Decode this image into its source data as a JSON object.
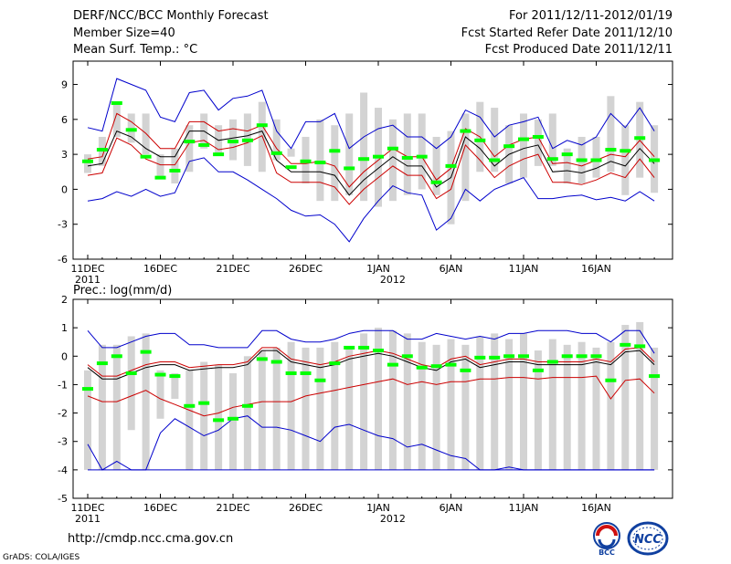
{
  "header": {
    "title": "DERF/NCC/BCC Monthly Forecast",
    "member_size": "Member Size=40",
    "variable": "Mean Surf. Temp.: °C",
    "period": "For 2011/12/11-2012/01/19",
    "started": "Fcst Started Refer Date 2011/12/10",
    "produced": "Fcst Produced Date 2011/12/11"
  },
  "footer": {
    "url": "http://cmdp.ncc.cma.gov.cn",
    "credit": "GrADS: COLA/IGES"
  },
  "logos": {
    "bcc": "BCC",
    "ncc": "NCC"
  },
  "colors": {
    "box": "#d3d3d3",
    "mean": "#00ff00",
    "median": "#000000",
    "inner": "#cc0000",
    "outer": "#0000cc"
  },
  "chart_data": [
    {
      "type": "line",
      "title": "Mean Surf. Temp.: °C",
      "ylim": [
        -6,
        11
      ],
      "yticks": [
        "9",
        "6",
        "3",
        "0",
        "-3",
        "-6"
      ],
      "ytick_values": [
        9,
        6,
        3,
        0,
        -3,
        -6
      ],
      "x_tick_days": [
        1,
        6,
        11,
        16,
        21,
        26,
        31,
        36
      ],
      "x_tick_labels": [
        "11DEC",
        "16DEC",
        "21DEC",
        "26DEC",
        "1JAN",
        "6JAN",
        "11JAN",
        "16JAN"
      ],
      "x_year_labels": [
        {
          "day": 1,
          "label": "2011"
        },
        {
          "day": 22,
          "label": "2012"
        }
      ],
      "days": [
        1,
        2,
        3,
        4,
        5,
        6,
        7,
        8,
        9,
        10,
        11,
        12,
        13,
        14,
        15,
        16,
        17,
        18,
        19,
        20,
        21,
        22,
        23,
        24,
        25,
        26,
        27,
        28,
        29,
        30,
        31,
        32,
        33,
        34,
        35,
        36,
        37,
        38,
        39,
        40
      ],
      "box_low": [
        1.4,
        2.0,
        4.5,
        4.0,
        3.0,
        1.0,
        0.5,
        1.5,
        3.5,
        3.0,
        2.5,
        2.0,
        1.5,
        2.5,
        2.8,
        0.5,
        -1.0,
        -1.0,
        -0.5,
        -1.0,
        -1.5,
        -1.0,
        -0.5,
        0.0,
        -0.5,
        -3.0,
        -1.0,
        1.5,
        1.5,
        0.5,
        1.0,
        2.0,
        2.0,
        0.5,
        0.5,
        1.0,
        1.5,
        -0.5,
        1.0,
        -0.3
      ],
      "box_high": [
        3.0,
        4.5,
        7.5,
        6.5,
        6.5,
        3.0,
        3.5,
        5.5,
        6.5,
        5.5,
        6.0,
        6.5,
        7.5,
        6.0,
        3.5,
        4.5,
        6.0,
        5.5,
        6.5,
        8.3,
        7.0,
        6.0,
        6.5,
        6.5,
        4.5,
        5.0,
        6.5,
        7.5,
        7.0,
        5.5,
        6.5,
        6.0,
        6.5,
        3.5,
        4.5,
        4.5,
        8.0,
        5.5,
        7.5,
        5.5
      ],
      "mean": [
        2.4,
        3.4,
        7.4,
        5.1,
        2.8,
        1.0,
        1.6,
        4.1,
        3.8,
        3.0,
        4.1,
        4.2,
        5.5,
        3.1,
        1.9,
        2.4,
        2.3,
        3.3,
        1.8,
        2.6,
        2.8,
        3.5,
        2.7,
        2.8,
        0.6,
        2.0,
        5.0,
        4.2,
        2.5,
        3.7,
        4.3,
        4.5,
        2.6,
        3.0,
        2.5,
        2.5,
        3.4,
        3.3,
        4.4,
        2.5
      ],
      "median": [
        2.0,
        2.2,
        5.0,
        4.5,
        3.5,
        2.8,
        2.8,
        5.0,
        5.0,
        4.2,
        4.4,
        4.6,
        5.0,
        2.5,
        1.5,
        1.5,
        1.5,
        1.2,
        -0.5,
        0.8,
        1.8,
        2.8,
        2.0,
        2.0,
        0.2,
        1.0,
        4.5,
        3.5,
        2.0,
        3.0,
        3.5,
        3.8,
        1.5,
        1.6,
        1.4,
        1.8,
        2.4,
        2.0,
        3.5,
        2.2
      ],
      "upper": [
        2.6,
        2.8,
        6.5,
        5.8,
        4.8,
        3.5,
        3.5,
        5.8,
        5.8,
        5.0,
        5.2,
        5.0,
        5.5,
        3.5,
        2.2,
        2.2,
        2.4,
        2.0,
        0.2,
        1.5,
        2.5,
        3.5,
        2.8,
        2.8,
        0.8,
        1.8,
        5.2,
        4.5,
        2.8,
        3.8,
        4.3,
        4.5,
        2.2,
        2.3,
        2.0,
        2.5,
        3.0,
        2.8,
        4.2,
        2.8
      ],
      "lower": [
        1.2,
        1.4,
        4.4,
        3.8,
        2.6,
        2.1,
        2.1,
        4.0,
        4.2,
        3.4,
        3.6,
        4.0,
        4.6,
        1.4,
        0.6,
        0.6,
        0.6,
        0.2,
        -1.3,
        0.0,
        1.0,
        2.0,
        1.2,
        1.2,
        -0.8,
        0.0,
        3.8,
        2.5,
        1.0,
        2.0,
        2.6,
        3.0,
        0.6,
        0.6,
        0.4,
        0.8,
        1.4,
        1.0,
        2.6,
        1.0
      ],
      "max": [
        5.3,
        5.0,
        9.5,
        9.0,
        8.5,
        6.2,
        5.8,
        8.3,
        8.5,
        6.8,
        7.8,
        8.0,
        8.5,
        5.0,
        3.5,
        5.8,
        5.8,
        6.5,
        3.5,
        4.5,
        5.2,
        5.5,
        4.5,
        4.5,
        3.5,
        4.5,
        6.8,
        6.2,
        4.5,
        5.5,
        5.8,
        6.2,
        3.5,
        4.2,
        3.8,
        4.5,
        6.5,
        5.3,
        7.0,
        5.0
      ],
      "min": [
        -1.0,
        -0.8,
        -0.2,
        -0.6,
        0.0,
        -0.6,
        -0.3,
        2.4,
        2.7,
        1.5,
        1.5,
        0.8,
        0.0,
        -0.8,
        -1.8,
        -2.3,
        -2.2,
        -3.0,
        -4.5,
        -2.5,
        -1.0,
        0.3,
        -0.3,
        -0.5,
        -3.5,
        -2.5,
        0.0,
        -1.0,
        0.0,
        0.5,
        1.0,
        -0.8,
        -0.8,
        -0.6,
        -0.5,
        -0.9,
        -0.7,
        -1.0,
        -0.2,
        -1.0
      ]
    },
    {
      "type": "line",
      "title": "Prec.: log(mm/d)",
      "ylim": [
        -5,
        2
      ],
      "yticks": [
        "2",
        "1",
        "0",
        "-1",
        "-2",
        "-3",
        "-4",
        "-5"
      ],
      "ytick_values": [
        2,
        1,
        0,
        -1,
        -2,
        -3,
        -4,
        -5
      ],
      "x_tick_days": [
        1,
        6,
        11,
        16,
        21,
        26,
        31,
        36
      ],
      "x_tick_labels": [
        "11DEC",
        "16DEC",
        "21DEC",
        "26DEC",
        "1JAN",
        "6JAN",
        "11JAN",
        "16JAN"
      ],
      "x_year_labels": [
        {
          "day": 1,
          "label": "2011"
        },
        {
          "day": 22,
          "label": "2012"
        }
      ],
      "days": [
        1,
        2,
        3,
        4,
        5,
        6,
        7,
        8,
        9,
        10,
        11,
        12,
        13,
        14,
        15,
        16,
        17,
        18,
        19,
        20,
        21,
        22,
        23,
        24,
        25,
        26,
        27,
        28,
        29,
        30,
        31,
        32,
        33,
        34,
        35,
        36,
        37,
        38,
        39,
        40
      ],
      "box_low": [
        -4.0,
        -4.0,
        -4.0,
        -2.6,
        -4.0,
        -2.2,
        -1.5,
        -4.0,
        -4.0,
        -4.0,
        -4.0,
        -4.0,
        -4.0,
        -4.0,
        -4.0,
        -4.0,
        -4.0,
        -4.0,
        -4.0,
        -4.0,
        -4.0,
        -4.0,
        -4.0,
        -4.0,
        -4.0,
        -4.0,
        -4.0,
        -4.0,
        -4.0,
        -4.0,
        -4.0,
        -4.0,
        -4.0,
        -4.0,
        -4.0,
        -4.0,
        -4.0,
        -4.0,
        -4.0,
        -4.0
      ],
      "box_high": [
        -0.5,
        0.4,
        0.4,
        0.7,
        0.8,
        -0.5,
        -0.6,
        -0.5,
        -0.2,
        -0.3,
        -0.6,
        0.0,
        0.2,
        0.3,
        0.5,
        0.3,
        0.3,
        0.5,
        0.3,
        0.8,
        1.0,
        0.9,
        0.8,
        0.5,
        0.4,
        0.6,
        0.4,
        0.7,
        0.8,
        0.6,
        0.8,
        0.2,
        0.6,
        0.4,
        0.5,
        0.3,
        0.5,
        1.1,
        1.2,
        0.3
      ],
      "mean": [
        -1.15,
        -0.25,
        0.0,
        -0.6,
        0.15,
        -0.65,
        -0.7,
        -1.75,
        -1.65,
        -2.25,
        -2.2,
        -1.75,
        -0.1,
        -0.2,
        -0.6,
        -0.6,
        -0.85,
        -0.25,
        0.3,
        0.3,
        0.2,
        -0.3,
        0.0,
        -0.4,
        -0.35,
        -0.3,
        -0.5,
        -0.05,
        -0.05,
        0.0,
        0.0,
        -0.5,
        -0.2,
        0.0,
        0.0,
        0.0,
        -0.85,
        0.4,
        0.35,
        -0.7
      ],
      "median": [
        -0.4,
        -0.8,
        -0.8,
        -0.6,
        -0.4,
        -0.3,
        -0.3,
        -0.5,
        -0.45,
        -0.4,
        -0.4,
        -0.3,
        0.2,
        0.2,
        -0.2,
        -0.3,
        -0.4,
        -0.3,
        -0.1,
        0.0,
        0.1,
        0.0,
        -0.2,
        -0.4,
        -0.5,
        -0.2,
        -0.1,
        -0.4,
        -0.3,
        -0.2,
        -0.2,
        -0.3,
        -0.3,
        -0.3,
        -0.3,
        -0.2,
        -0.3,
        0.15,
        0.2,
        -0.3
      ],
      "upper": [
        -0.3,
        -0.7,
        -0.7,
        -0.5,
        -0.3,
        -0.2,
        -0.2,
        -0.4,
        -0.35,
        -0.3,
        -0.3,
        -0.2,
        0.3,
        0.3,
        -0.1,
        -0.2,
        -0.3,
        -0.2,
        0.0,
        0.1,
        0.2,
        0.1,
        -0.1,
        -0.3,
        -0.4,
        -0.1,
        0.0,
        -0.3,
        -0.2,
        -0.1,
        -0.1,
        -0.2,
        -0.2,
        -0.2,
        -0.2,
        -0.1,
        -0.2,
        0.25,
        0.3,
        -0.2
      ],
      "lower": [
        -1.4,
        -1.6,
        -1.6,
        -1.4,
        -1.2,
        -1.5,
        -1.7,
        -1.9,
        -2.1,
        -2.0,
        -1.8,
        -1.7,
        -1.6,
        -1.6,
        -1.6,
        -1.4,
        -1.3,
        -1.2,
        -1.1,
        -1.0,
        -0.9,
        -0.8,
        -1.0,
        -0.9,
        -1.0,
        -0.9,
        -0.9,
        -0.8,
        -0.8,
        -0.75,
        -0.75,
        -0.8,
        -0.75,
        -0.75,
        -0.75,
        -0.7,
        -1.5,
        -0.85,
        -0.8,
        -1.3
      ],
      "max": [
        0.9,
        0.3,
        0.3,
        0.5,
        0.7,
        0.8,
        0.8,
        0.4,
        0.4,
        0.3,
        0.3,
        0.3,
        0.9,
        0.9,
        0.6,
        0.5,
        0.5,
        0.6,
        0.8,
        0.9,
        0.9,
        0.9,
        0.6,
        0.6,
        0.8,
        0.7,
        0.6,
        0.7,
        0.6,
        0.8,
        0.8,
        0.9,
        0.9,
        0.9,
        0.8,
        0.8,
        0.5,
        0.9,
        0.9,
        0.1
      ],
      "min": [
        -3.1,
        -4.0,
        -3.7,
        -4.0,
        -4.0,
        -2.7,
        -2.2,
        -2.5,
        -2.8,
        -2.6,
        -2.2,
        -2.1,
        -2.5,
        -2.5,
        -2.6,
        -2.8,
        -3.0,
        -2.5,
        -2.4,
        -2.6,
        -2.8,
        -2.9,
        -3.2,
        -3.1,
        -3.3,
        -3.5,
        -3.6,
        -4.0,
        -4.0,
        -3.9,
        -4.0,
        -4.0,
        -4.0,
        -4.0,
        -4.0,
        -4.0,
        -4.0,
        -4.0,
        -4.0,
        -4.0
      ],
      "floor": -4.0
    }
  ]
}
